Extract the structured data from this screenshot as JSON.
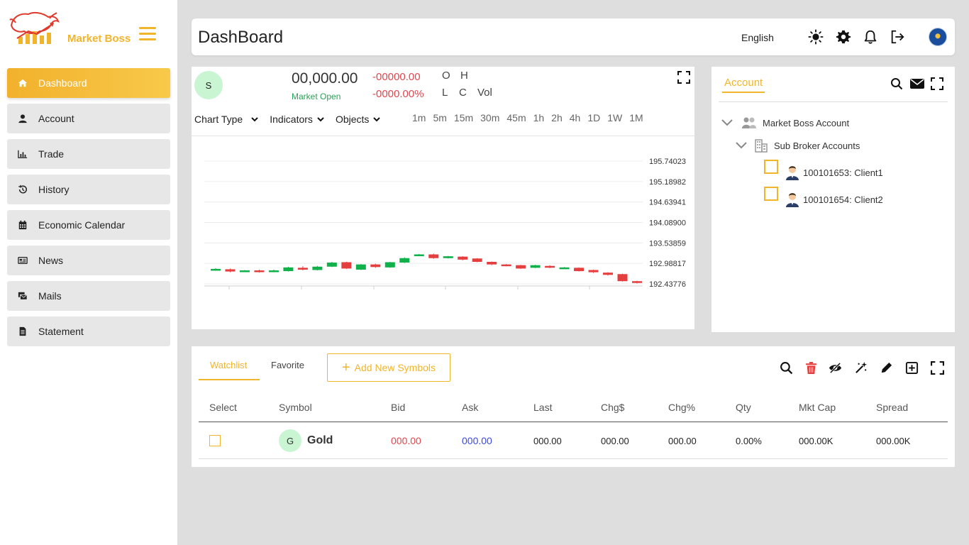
{
  "brand": {
    "name": "Market Boss",
    "accent": "#f1b52b"
  },
  "sidebar": {
    "items": [
      {
        "label": "Dashboard",
        "icon": "home-icon",
        "active": true
      },
      {
        "label": "Account",
        "icon": "user-icon"
      },
      {
        "label": "Trade",
        "icon": "bar-chart-icon"
      },
      {
        "label": "History",
        "icon": "history-icon"
      },
      {
        "label": "Economic Calendar",
        "icon": "calendar-icon"
      },
      {
        "label": "News",
        "icon": "news-icon"
      },
      {
        "label": "Mails",
        "icon": "mail-icon"
      },
      {
        "label": "Statement",
        "icon": "document-icon"
      }
    ]
  },
  "header": {
    "title": "DashBoard",
    "language": "English",
    "icons": [
      "sun-icon",
      "gear-icon",
      "bell-icon",
      "logout-icon",
      "avatar"
    ]
  },
  "chart_panel": {
    "symbol_initial": "S",
    "price": "00,000.00",
    "status": "Market Open",
    "change": "-00000.00",
    "change_pct": "-0000.00%",
    "ohlc": {
      "o": "O",
      "h": "H",
      "l": "L",
      "c": "C",
      "vol": "Vol"
    },
    "toolbar": {
      "chart_type": "Chart Type",
      "indicators": "Indicators",
      "objects": "Objects"
    },
    "timeframes": [
      "1m",
      "5m",
      "15m",
      "30m",
      "45m",
      "1h",
      "2h",
      "4h",
      "1D",
      "1W",
      "1M"
    ],
    "up_color": "#10b04a",
    "down_color": "#e53e3e"
  },
  "chart_data": {
    "type": "candlestick",
    "y_ticks": [
      "195.74023",
      "195.18982",
      "194.63941",
      "194.08900",
      "193.53859",
      "192.98817",
      "192.43776"
    ],
    "ylim": [
      192.43776,
      195.74023
    ],
    "grid": true,
    "candles": [
      {
        "o": 192.81,
        "c": 192.84,
        "h": 192.86,
        "l": 192.79
      },
      {
        "o": 192.83,
        "c": 192.77,
        "h": 192.85,
        "l": 192.75
      },
      {
        "o": 192.79,
        "c": 192.8,
        "h": 192.81,
        "l": 192.77
      },
      {
        "o": 192.8,
        "c": 192.76,
        "h": 192.82,
        "l": 192.74
      },
      {
        "o": 192.76,
        "c": 192.8,
        "h": 192.82,
        "l": 192.75
      },
      {
        "o": 192.78,
        "c": 192.88,
        "h": 192.9,
        "l": 192.77
      },
      {
        "o": 192.87,
        "c": 192.82,
        "h": 192.91,
        "l": 192.8
      },
      {
        "o": 192.81,
        "c": 192.9,
        "h": 192.92,
        "l": 192.8
      },
      {
        "o": 192.9,
        "c": 193.01,
        "h": 193.03,
        "l": 192.89
      },
      {
        "o": 193.02,
        "c": 192.85,
        "h": 193.03,
        "l": 192.84
      },
      {
        "o": 192.82,
        "c": 192.96,
        "h": 192.97,
        "l": 192.81
      },
      {
        "o": 192.96,
        "c": 192.89,
        "h": 192.98,
        "l": 192.87
      },
      {
        "o": 192.88,
        "c": 193.02,
        "h": 193.03,
        "l": 192.87
      },
      {
        "o": 193.01,
        "c": 193.13,
        "h": 193.15,
        "l": 193.0
      },
      {
        "o": 193.19,
        "c": 193.23,
        "h": 193.24,
        "l": 193.18
      },
      {
        "o": 193.23,
        "c": 193.13,
        "h": 193.25,
        "l": 193.11
      },
      {
        "o": 193.13,
        "c": 193.18,
        "h": 193.19,
        "l": 193.12
      },
      {
        "o": 193.17,
        "c": 193.09,
        "h": 193.18,
        "l": 193.07
      },
      {
        "o": 193.12,
        "c": 193.03,
        "h": 193.13,
        "l": 193.02
      },
      {
        "o": 193.03,
        "c": 192.96,
        "h": 193.04,
        "l": 192.94
      },
      {
        "o": 192.96,
        "c": 192.93,
        "h": 192.97,
        "l": 192.91
      },
      {
        "o": 192.94,
        "c": 192.85,
        "h": 192.95,
        "l": 192.84
      },
      {
        "o": 192.87,
        "c": 192.94,
        "h": 192.95,
        "l": 192.86
      },
      {
        "o": 192.92,
        "c": 192.88,
        "h": 192.94,
        "l": 192.86
      },
      {
        "o": 192.86,
        "c": 192.88,
        "h": 192.89,
        "l": 192.85
      },
      {
        "o": 192.87,
        "c": 192.78,
        "h": 192.88,
        "l": 192.77
      },
      {
        "o": 192.81,
        "c": 192.75,
        "h": 192.82,
        "l": 192.73
      },
      {
        "o": 192.74,
        "c": 192.68,
        "h": 192.75,
        "l": 192.66
      },
      {
        "o": 192.7,
        "c": 192.51,
        "h": 192.71,
        "l": 192.5
      },
      {
        "o": 192.51,
        "c": 192.47,
        "h": 192.52,
        "l": 192.45
      }
    ]
  },
  "account_panel": {
    "tab": "Account",
    "tree": {
      "root": "Market Boss Account",
      "sub": "Sub Broker Accounts",
      "clients": [
        "100101653: Client1",
        "100101654: Client2"
      ]
    }
  },
  "watchlist": {
    "tabs": [
      "Watchlist",
      "Favorite"
    ],
    "add_button": "Add New Symbols",
    "columns": [
      "Select",
      "Symbol",
      "Bid",
      "Ask",
      "Last",
      "Chg$",
      "Chg%",
      "Qty",
      "Mkt Cap",
      "Spread"
    ],
    "rows": [
      {
        "initial": "G",
        "symbol": "Gold",
        "bid": "000.00",
        "ask": "000.00",
        "last": "000.00",
        "chg": "000.00",
        "chg_pct": "000.00",
        "qty": "0.00%",
        "mkt_cap": "000.00K",
        "spread": "000.00K"
      }
    ],
    "bid_color": "#e0464e",
    "ask_color": "#3b48e0"
  }
}
